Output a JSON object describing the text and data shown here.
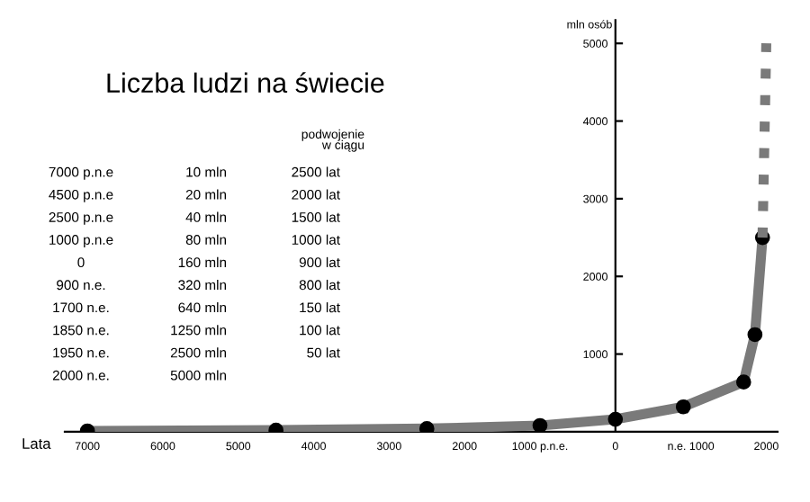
{
  "chart_data": {
    "type": "line",
    "title": "Liczba ludzi na świecie",
    "xlabel": "Lata",
    "ylabel": "mln osób",
    "x": [
      -7000,
      -4500,
      -2500,
      -1000,
      0,
      900,
      1700,
      1850,
      1950
    ],
    "series": [
      {
        "color": "#7a7a7a",
        "values": [
          10,
          20,
          40,
          80,
          160,
          320,
          640,
          1250,
          2500
        ],
        "marker": "circle",
        "line_style": "solid"
      },
      {
        "color": "#7a7a7a",
        "x": [
          1950,
          2000
        ],
        "values": [
          2500,
          5000
        ],
        "marker": "none",
        "line_style": "dotted"
      }
    ],
    "xlim": [
      -7300,
      2150
    ],
    "ylim": [
      0,
      5300
    ],
    "xticks": [
      {
        "value": -7000,
        "label": "7000"
      },
      {
        "value": -6000,
        "label": "6000"
      },
      {
        "value": -5000,
        "label": "5000"
      },
      {
        "value": -4000,
        "label": "4000"
      },
      {
        "value": -3000,
        "label": "3000"
      },
      {
        "value": -2000,
        "label": "2000"
      },
      {
        "value": -1000,
        "label": "1000 p.n.e."
      },
      0,
      {
        "value": 1000,
        "label": "n.e. 1000"
      },
      2000
    ],
    "yticks": [
      1000,
      2000,
      3000,
      4000,
      5000
    ],
    "grid": false,
    "legend": false,
    "annotations": [
      "podwojenie\nw ciągu",
      "7000 p.n.e",
      "10 mln",
      "2500 lat",
      "4500 p.n.e",
      "20 mln",
      "2000 lat",
      "2500 p.n.e",
      "40 mln",
      "1500 lat",
      "1000 p.n.e",
      "80 mln",
      "1000 lat",
      "0",
      "160 mln",
      "900 lat",
      "900 n.e.",
      "320 mln",
      "800 lat",
      "1700 n.e.",
      "640 mln",
      "150 lat",
      "1850 n.e.",
      "1250 mln",
      "100 lat",
      "1950 n.e.",
      "2500 mln",
      "50 lat",
      "2000 n.e.",
      "5000 mln"
    ]
  }
}
